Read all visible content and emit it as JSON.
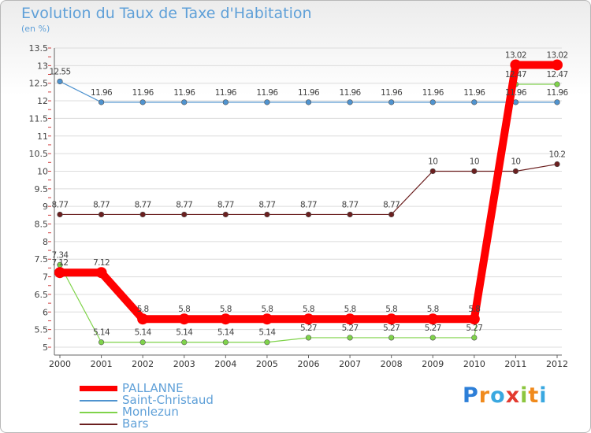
{
  "chart_data": {
    "type": "line",
    "title": "Evolution du Taux de Taxe d'Habitation",
    "subtitle": "(en %)",
    "xlabel": "",
    "ylabel": "",
    "x": [
      "2000",
      "2001",
      "2002",
      "2003",
      "2004",
      "2005",
      "2006",
      "2007",
      "2008",
      "2009",
      "2010",
      "2011",
      "2012"
    ],
    "ylim": [
      5,
      13.5
    ],
    "yticks": [
      "5",
      "5.5",
      "6",
      "6.5",
      "7",
      "7.5",
      "8",
      "8.5",
      "9",
      "9.5",
      "10",
      "10.5",
      "11",
      "11.5",
      "12",
      "12.5",
      "13",
      "13.5"
    ],
    "series": [
      {
        "name": "PALLANNE",
        "color": "#ff0000",
        "values": [
          7.12,
          7.12,
          5.8,
          5.8,
          5.8,
          5.8,
          5.8,
          5.8,
          5.8,
          5.8,
          5.8,
          13.02,
          13.02
        ],
        "labels": [
          "7.12",
          "7.12",
          "5.8",
          "5.8",
          "5.8",
          "5.8",
          "5.8",
          "5.8",
          "5.8",
          "5.8",
          "5.8",
          "13.02",
          "13.02"
        ]
      },
      {
        "name": "Saint-Christaud",
        "color": "#4f93cf",
        "values": [
          12.55,
          11.96,
          11.96,
          11.96,
          11.96,
          11.96,
          11.96,
          11.96,
          11.96,
          11.96,
          11.96,
          11.96,
          11.96
        ],
        "labels": [
          "12.55",
          "11.96",
          "11.96",
          "11.96",
          "11.96",
          "11.96",
          "11.96",
          "11.96",
          "11.96",
          "11.96",
          "11.96",
          "11.96",
          "11.96"
        ]
      },
      {
        "name": "Monlezun",
        "color": "#7fd34a",
        "values": [
          7.34,
          5.14,
          5.14,
          5.14,
          5.14,
          5.14,
          5.27,
          5.27,
          5.27,
          5.27,
          5.27,
          12.47,
          12.47
        ],
        "labels": [
          "7.34",
          "5.14",
          "5.14",
          "5.14",
          "5.14",
          "5.14",
          "5.27",
          "5.27",
          "5.27",
          "5.27",
          "5.27",
          "12.47",
          "12.47"
        ]
      },
      {
        "name": "Bars",
        "color": "#6b1f1f",
        "values": [
          8.77,
          8.77,
          8.77,
          8.77,
          8.77,
          8.77,
          8.77,
          8.77,
          8.77,
          10,
          10,
          10,
          10.2
        ],
        "labels": [
          "8.77",
          "8.77",
          "8.77",
          "8.77",
          "8.77",
          "8.77",
          "8.77",
          "8.77",
          "8.77",
          "10",
          "10",
          "10",
          "10.2"
        ]
      }
    ],
    "legend_position": "bottom-left"
  },
  "brand": {
    "letters": [
      "P",
      "r",
      "o",
      "x",
      "i",
      "t",
      "i"
    ],
    "colors": [
      "#2d7fd8",
      "#f08a1c",
      "#3aa8e0",
      "#e33a2f",
      "#8cc63f",
      "#f08a1c",
      "#3aa8e0"
    ]
  }
}
